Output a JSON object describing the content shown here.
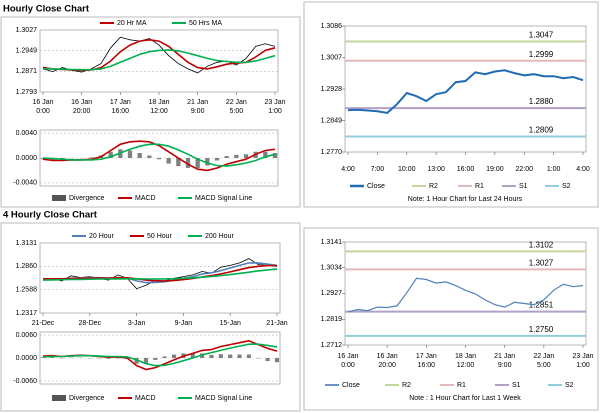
{
  "chart_data": [
    {
      "type": "line",
      "title": "Hourly Close Chart",
      "categories": [
        [
          "16 Jan",
          "0:00"
        ],
        null,
        null,
        null,
        [
          "16 Jan",
          "20:00"
        ],
        null,
        null,
        null,
        [
          "17 Jan",
          "16:00"
        ],
        null,
        null,
        null,
        [
          "18 Jan",
          "12:00"
        ],
        null,
        null,
        null,
        [
          "21 Jan",
          "9:00"
        ],
        null,
        null,
        null,
        [
          "22 Jan",
          "5:00"
        ],
        null,
        null,
        null,
        [
          "23 Jan",
          "1:00"
        ]
      ],
      "values": [
        1.288,
        1.287,
        1.2885,
        1.2875,
        1.2868,
        1.288,
        1.29,
        1.296,
        1.3,
        1.299,
        1.2985,
        1.2995,
        1.297,
        1.293,
        1.29,
        1.288,
        1.2865,
        1.289,
        1.2905,
        1.291,
        1.2895,
        1.292,
        1.2965,
        1.2975,
        1.2965
      ],
      "color": "#000000",
      "series": [
        {
          "name": "20 Hr MA",
          "color": "#c00000",
          "values": [
            1.2885,
            1.288,
            1.2878,
            1.2876,
            1.2874,
            1.2876,
            1.2885,
            1.291,
            1.2945,
            1.297,
            1.2985,
            1.299,
            1.2985,
            1.2965,
            1.2935,
            1.2905,
            1.2885,
            1.288,
            1.2888,
            1.2898,
            1.2902,
            1.2905,
            1.2925,
            1.295,
            1.296
          ]
        },
        {
          "name": "50 Hrs MA",
          "color": "#00b050",
          "values": [
            1.288,
            1.288,
            1.2879,
            1.2878,
            1.2877,
            1.2877,
            1.288,
            1.289,
            1.2905,
            1.292,
            1.2935,
            1.2945,
            1.295,
            1.2952,
            1.2948,
            1.294,
            1.293,
            1.292,
            1.2912,
            1.2908,
            1.2905,
            1.2905,
            1.291,
            1.292,
            1.293
          ]
        }
      ],
      "ylim": [
        1.2793,
        1.3027
      ],
      "yticks": [
        1.2793,
        1.2871,
        1.2949,
        1.3027
      ],
      "grid": true
    },
    {
      "type": "combo",
      "series": [
        {
          "name": "Divergence",
          "kind": "bar",
          "color": "#808080",
          "values": [
            -0.0002,
            -0.0003,
            -0.0002,
            0.0,
            0.0,
            0.0001,
            0.0004,
            0.001,
            0.0014,
            0.0012,
            0.0008,
            0.0004,
            -0.0002,
            -0.0009,
            -0.0013,
            -0.0016,
            -0.0016,
            -0.0012,
            -0.0004,
            0.0003,
            0.0005,
            0.0006,
            0.001,
            0.001,
            0.0008
          ]
        },
        {
          "name": "MACD",
          "kind": "line",
          "color": "#c00000",
          "values": [
            -0.0002,
            -0.0004,
            -0.0004,
            -0.0003,
            -0.0003,
            -0.0002,
            0.0002,
            0.0012,
            0.0022,
            0.0026,
            0.0027,
            0.0026,
            0.002,
            0.001,
            0.0,
            -0.001,
            -0.0018,
            -0.002,
            -0.0016,
            -0.001,
            -0.0006,
            -0.0002,
            0.0006,
            0.0012,
            0.0014
          ]
        },
        {
          "name": "MACD Signal Line",
          "kind": "line",
          "color": "#00b050",
          "values": [
            0.0,
            -0.0001,
            -0.0002,
            -0.0003,
            -0.0003,
            -0.0003,
            -0.0002,
            0.0002,
            0.0008,
            0.0014,
            0.0019,
            0.0022,
            0.0022,
            0.0019,
            0.0013,
            0.0006,
            -0.0002,
            -0.0008,
            -0.0012,
            -0.0013,
            -0.0011,
            -0.0008,
            -0.0004,
            0.0002,
            0.0006
          ]
        }
      ],
      "ylim": [
        -0.0045,
        0.0045
      ],
      "yticks": [
        {
          "value": -0.004,
          "label": "-0.0040"
        },
        {
          "value": 0,
          "label": "0.0000"
        },
        {
          "value": 0.004,
          "label": "0.0040"
        }
      ],
      "grid": true
    },
    {
      "type": "line",
      "categories": [
        "4:00",
        null,
        null,
        "7:00",
        null,
        null,
        "10:00",
        null,
        null,
        "13:00",
        null,
        null,
        "16:00",
        null,
        null,
        "19:00",
        null,
        null,
        "22:00",
        null,
        null,
        "1:00",
        null,
        null,
        "4:00"
      ],
      "series": [
        {
          "name": "Close",
          "color": "#1f6bb5",
          "line_width": 2,
          "values": [
            1.2875,
            1.2876,
            1.2874,
            1.2872,
            1.2868,
            1.289,
            1.2918,
            1.291,
            1.2898,
            1.2915,
            1.292,
            1.2945,
            1.2948,
            1.297,
            1.2965,
            1.2972,
            1.2975,
            1.2968,
            1.2962,
            1.2965,
            1.296,
            1.296,
            1.2955,
            1.2958,
            1.295
          ]
        }
      ],
      "levels": [
        {
          "name": "R2",
          "value": 1.3047,
          "label": "1.3047",
          "color": "#c4d79b"
        },
        {
          "name": "R1",
          "value": 1.2999,
          "label": "1.2999",
          "color": "#e6b9b8"
        },
        {
          "name": "S1",
          "value": 1.288,
          "label": "1.2880",
          "color": "#b1a0c7"
        },
        {
          "name": "S2",
          "value": 1.2809,
          "label": "1.2809",
          "color": "#92cddc"
        }
      ],
      "ylim": [
        1.277,
        1.3086
      ],
      "yticks": [
        {
          "value": 1.277,
          "label": "1.2770"
        },
        1.2849,
        1.2928,
        1.3007,
        1.3086
      ],
      "grid": false,
      "note": "Note: 1 Hour Chart for Last 24 Hours"
    },
    {
      "type": "line",
      "title": "4 Hourly Close Chart",
      "categories": [
        "21-Dec",
        null,
        null,
        null,
        null,
        "28-Dec",
        null,
        null,
        null,
        null,
        "3-Jan",
        null,
        null,
        null,
        null,
        "9-Jan",
        null,
        null,
        null,
        null,
        "15-Jan",
        null,
        null,
        null,
        null,
        "21-Jan"
      ],
      "values": [
        1.27,
        1.272,
        1.269,
        1.275,
        1.273,
        1.274,
        1.272,
        1.27,
        1.276,
        1.272,
        1.26,
        1.264,
        1.27,
        1.269,
        1.272,
        1.274,
        1.276,
        1.28,
        1.278,
        1.285,
        1.287,
        1.29,
        1.295,
        1.288,
        1.287,
        1.286
      ],
      "color": "#000000",
      "series": [
        {
          "name": "20 Hour",
          "color": "#4f81bd",
          "values": [
            1.271,
            1.2712,
            1.2712,
            1.272,
            1.2725,
            1.273,
            1.2728,
            1.2722,
            1.273,
            1.2725,
            1.269,
            1.267,
            1.2672,
            1.268,
            1.27,
            1.272,
            1.274,
            1.277,
            1.2785,
            1.281,
            1.284,
            1.287,
            1.29,
            1.29,
            1.2885,
            1.287
          ]
        },
        {
          "name": "50 Hour",
          "color": "#c00000",
          "values": [
            1.2715,
            1.2715,
            1.2715,
            1.2718,
            1.272,
            1.2722,
            1.2724,
            1.2724,
            1.2726,
            1.2726,
            1.2715,
            1.27,
            1.2692,
            1.269,
            1.2694,
            1.2705,
            1.2718,
            1.2735,
            1.2752,
            1.2772,
            1.2795,
            1.282,
            1.2845,
            1.286,
            1.2868,
            1.2868
          ]
        },
        {
          "name": "200 Hour",
          "color": "#00b050",
          "values": [
            1.27,
            1.2702,
            1.2704,
            1.2706,
            1.2708,
            1.271,
            1.2712,
            1.2713,
            1.2714,
            1.2715,
            1.2714,
            1.2712,
            1.2712,
            1.2713,
            1.2716,
            1.272,
            1.2726,
            1.2733,
            1.2742,
            1.2752,
            1.2764,
            1.2777,
            1.2792,
            1.2806,
            1.2818,
            1.2828
          ]
        }
      ],
      "ylim": [
        1.2317,
        1.3131
      ],
      "yticks": [
        1.2317,
        1.2588,
        {
          "value": 1.286,
          "label": "1.2860"
        },
        1.3131
      ],
      "grid": true
    },
    {
      "type": "combo",
      "series": [
        {
          "name": "Divergence",
          "kind": "bar",
          "color": "#808080",
          "values": [
            0.0002,
            0.0002,
            0.0,
            0.0001,
            0.0001,
            0.0,
            -0.0001,
            -0.0002,
            -0.0001,
            -0.0003,
            -0.0015,
            -0.0015,
            -0.0005,
            0.0004,
            0.0009,
            0.0012,
            0.0012,
            0.0012,
            0.0008,
            0.001,
            0.0009,
            0.0009,
            0.0009,
            -0.0001,
            -0.0008,
            -0.0011
          ]
        },
        {
          "name": "MACD",
          "kind": "line",
          "color": "#c00000",
          "values": [
            0.0005,
            0.0006,
            0.0004,
            0.0006,
            0.0007,
            0.0006,
            0.0004,
            0.0002,
            0.0003,
            0.0,
            -0.002,
            -0.003,
            -0.0025,
            -0.0015,
            -0.0005,
            0.0005,
            0.0012,
            0.002,
            0.0022,
            0.003,
            0.0035,
            0.004,
            0.0045,
            0.0035,
            0.0025,
            0.0018
          ]
        },
        {
          "name": "MACD Signal Line",
          "kind": "line",
          "color": "#00b050",
          "values": [
            0.0003,
            0.0004,
            0.0004,
            0.0005,
            0.0006,
            0.0006,
            0.0005,
            0.0004,
            0.0004,
            0.0003,
            -0.0005,
            -0.0015,
            -0.002,
            -0.0019,
            -0.0014,
            -0.0007,
            0.0,
            0.0008,
            0.0014,
            0.002,
            0.0026,
            0.0031,
            0.0036,
            0.0036,
            0.0033,
            0.0029
          ]
        }
      ],
      "ylim": [
        -0.0068,
        0.0068
      ],
      "yticks": [
        {
          "value": -0.006,
          "label": "-0.0060"
        },
        {
          "value": 0,
          "label": "0.0000"
        },
        {
          "value": 0.006,
          "label": "0.0060"
        }
      ],
      "grid": true
    },
    {
      "type": "line",
      "categories": [
        [
          "16 Jan",
          "0:00"
        ],
        null,
        null,
        null,
        [
          "16 Jan",
          "20:00"
        ],
        null,
        null,
        null,
        [
          "17 Jan",
          "16:00"
        ],
        null,
        null,
        null,
        [
          "18 Jan",
          "12:00"
        ],
        null,
        null,
        null,
        [
          "21 Jan",
          "9:00"
        ],
        null,
        null,
        null,
        [
          "22 Jan",
          "5:00"
        ],
        null,
        null,
        null,
        [
          "23 Jan",
          "1:00"
        ]
      ],
      "series": [
        {
          "name": "Close",
          "color": "#4f81bd",
          "line_width": 1.2,
          "values": [
            1.285,
            1.286,
            1.2855,
            1.287,
            1.2868,
            1.2875,
            1.293,
            1.299,
            1.2985,
            1.297,
            1.2975,
            1.296,
            1.294,
            1.2925,
            1.29,
            1.288,
            1.287,
            1.289,
            1.2885,
            1.288,
            1.29,
            1.294,
            1.2965,
            1.2955,
            1.296
          ]
        }
      ],
      "levels": [
        {
          "name": "R2",
          "value": 1.3102,
          "label": "1.3102",
          "color": "#c4d79b"
        },
        {
          "name": "R1",
          "value": 1.3027,
          "label": "1.3027",
          "color": "#e6b9b8"
        },
        {
          "name": "S1",
          "value": 1.2851,
          "label": "1.2851",
          "color": "#b1a0c7"
        },
        {
          "name": "S2",
          "value": 1.275,
          "label": "1.2750",
          "color": "#92cddc"
        }
      ],
      "ylim": [
        1.2712,
        1.3141
      ],
      "yticks": [
        1.2712,
        1.2819,
        1.2927,
        1.3034,
        1.3141
      ],
      "grid": false,
      "note": "Note : 1 Hour Chart for Last 1 Week"
    }
  ]
}
